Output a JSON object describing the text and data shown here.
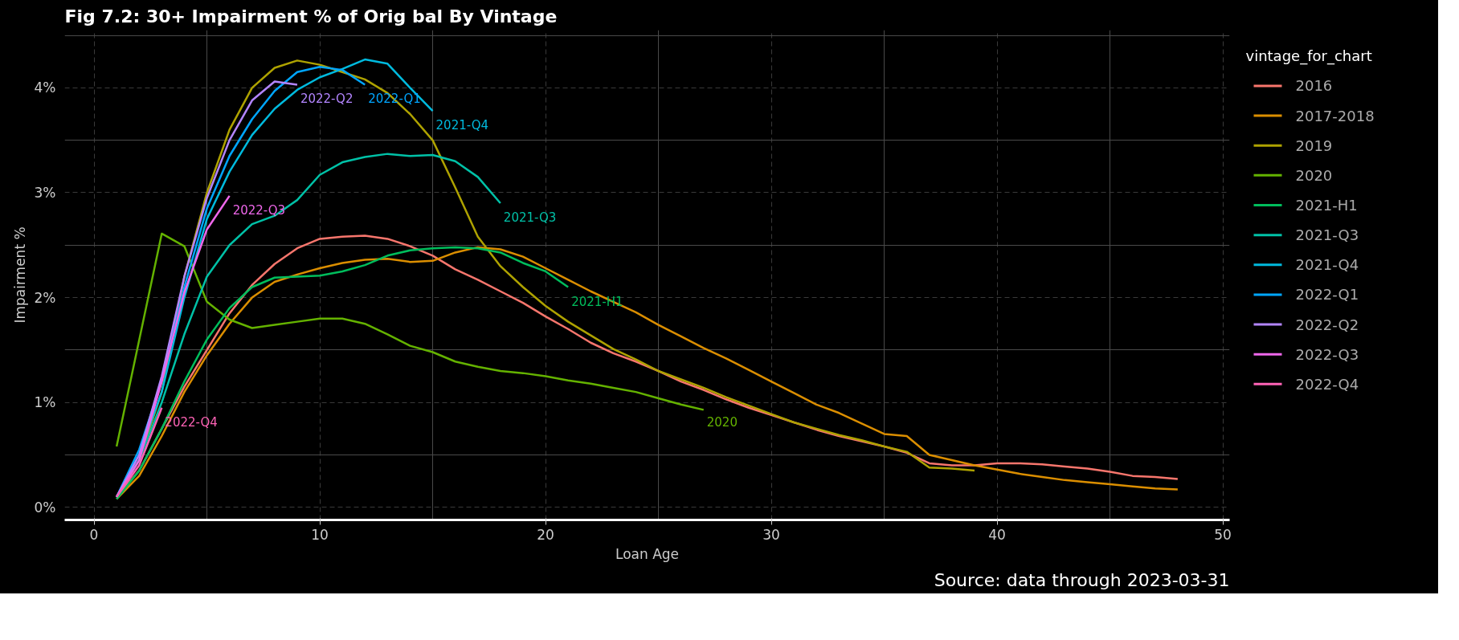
{
  "chart_data": {
    "type": "line",
    "title": "Fig 7.2: 30+ Impairment % of Orig bal By Vintage",
    "xlabel": "Loan Age",
    "ylabel": "Impairment %",
    "legend_title": "vintage_for_chart",
    "legend": "right",
    "grid": true,
    "line_style": "solid",
    "xlim": [
      -1.3,
      50.3
    ],
    "xticks": [
      0,
      10,
      20,
      30,
      40,
      50
    ],
    "ylim": [
      -0.12,
      4.55
    ],
    "yticks": [
      {
        "value": 0,
        "label": "0%"
      },
      {
        "value": 1,
        "label": "1%"
      },
      {
        "value": 2,
        "label": "2%"
      },
      {
        "value": 3,
        "label": "3%"
      },
      {
        "value": 4,
        "label": "4%"
      }
    ],
    "series": [
      {
        "name": "2016",
        "color": "#f8766d",
        "x": [
          1,
          2,
          3,
          4,
          5,
          6,
          7,
          8,
          9,
          10,
          11,
          12,
          13,
          14,
          15,
          16,
          17,
          18,
          19,
          20,
          21,
          22,
          23,
          24,
          25,
          26,
          27,
          28,
          29,
          30,
          31,
          32,
          33,
          34,
          35,
          36,
          37,
          38,
          39,
          40,
          41,
          42,
          43,
          44,
          45,
          46,
          47,
          48
        ],
        "values": [
          0.1,
          0.35,
          0.75,
          1.15,
          1.5,
          1.85,
          2.12,
          2.32,
          2.47,
          2.56,
          2.58,
          2.59,
          2.56,
          2.49,
          2.4,
          2.27,
          2.17,
          2.06,
          1.95,
          1.82,
          1.7,
          1.57,
          1.47,
          1.39,
          1.3,
          1.2,
          1.12,
          1.03,
          0.95,
          0.88,
          0.81,
          0.74,
          0.68,
          0.63,
          0.58,
          0.52,
          0.42,
          0.4,
          0.4,
          0.42,
          0.42,
          0.41,
          0.39,
          0.37,
          0.34,
          0.3,
          0.29,
          0.27
        ]
      },
      {
        "name": "2017-2018",
        "color": "#db8e00",
        "x": [
          1,
          2,
          3,
          4,
          5,
          6,
          7,
          8,
          9,
          10,
          11,
          12,
          13,
          14,
          15,
          16,
          17,
          18,
          19,
          20,
          21,
          22,
          23,
          24,
          25,
          26,
          27,
          28,
          29,
          30,
          31,
          32,
          33,
          34,
          35,
          36,
          37,
          38,
          39,
          40,
          41,
          42,
          43,
          44,
          45,
          46,
          47,
          48
        ],
        "values": [
          0.08,
          0.3,
          0.68,
          1.1,
          1.45,
          1.75,
          2.0,
          2.15,
          2.22,
          2.28,
          2.33,
          2.36,
          2.37,
          2.34,
          2.35,
          2.43,
          2.48,
          2.46,
          2.39,
          2.28,
          2.17,
          2.06,
          1.96,
          1.86,
          1.74,
          1.63,
          1.52,
          1.42,
          1.31,
          1.2,
          1.09,
          0.98,
          0.9,
          0.8,
          0.7,
          0.68,
          0.5,
          0.45,
          0.4,
          0.36,
          0.32,
          0.29,
          0.26,
          0.24,
          0.22,
          0.2,
          0.18,
          0.17
        ]
      },
      {
        "name": "2019",
        "color": "#aea200",
        "x": [
          1,
          2,
          3,
          4,
          5,
          6,
          7,
          8,
          9,
          10,
          11,
          12,
          13,
          14,
          15,
          16,
          17,
          18,
          19,
          20,
          21,
          22,
          23,
          24,
          25,
          26,
          27,
          28,
          29,
          30,
          31,
          32,
          33,
          34,
          35,
          36,
          37,
          38,
          39
        ],
        "values": [
          0.1,
          0.45,
          1.1,
          2.2,
          3.0,
          3.6,
          4.0,
          4.19,
          4.26,
          4.22,
          4.15,
          4.08,
          3.95,
          3.75,
          3.5,
          3.05,
          2.58,
          2.3,
          2.1,
          1.92,
          1.77,
          1.64,
          1.51,
          1.41,
          1.3,
          1.22,
          1.14,
          1.05,
          0.97,
          0.89,
          0.81,
          0.75,
          0.69,
          0.64,
          0.58,
          0.53,
          0.38,
          0.37,
          0.35
        ]
      },
      {
        "name": "2020",
        "color": "#64b200",
        "x": [
          1,
          3,
          4,
          5,
          6,
          7,
          8,
          9,
          10,
          11,
          12,
          13,
          14,
          15,
          16,
          17,
          18,
          19,
          20,
          21,
          22,
          23,
          24,
          25,
          26,
          27
        ],
        "values": [
          0.58,
          2.61,
          2.49,
          1.96,
          1.79,
          1.71,
          1.74,
          1.77,
          1.8,
          1.8,
          1.75,
          1.65,
          1.54,
          1.48,
          1.39,
          1.34,
          1.3,
          1.28,
          1.25,
          1.21,
          1.18,
          1.14,
          1.1,
          1.04,
          0.98,
          0.93
        ]
      },
      {
        "name": "2021-H1",
        "color": "#00bd5c",
        "x": [
          1,
          2,
          3,
          4,
          5,
          6,
          7,
          8,
          9,
          10,
          11,
          12,
          13,
          14,
          15,
          16,
          17,
          18,
          19,
          20,
          21
        ],
        "values": [
          0.08,
          0.35,
          0.75,
          1.2,
          1.6,
          1.9,
          2.1,
          2.19,
          2.2,
          2.21,
          2.25,
          2.31,
          2.4,
          2.45,
          2.47,
          2.48,
          2.47,
          2.43,
          2.33,
          2.25,
          2.1
        ]
      },
      {
        "name": "2021-Q3",
        "color": "#00c1a7",
        "x": [
          1,
          2,
          3,
          4,
          5,
          6,
          7,
          8,
          9,
          10,
          11,
          12,
          13,
          14,
          15,
          16,
          17,
          18
        ],
        "values": [
          0.1,
          0.45,
          1.0,
          1.65,
          2.2,
          2.5,
          2.7,
          2.78,
          2.93,
          3.17,
          3.29,
          3.34,
          3.37,
          3.35,
          3.36,
          3.3,
          3.15,
          2.9
        ]
      },
      {
        "name": "2021-Q4",
        "color": "#00bade",
        "x": [
          1,
          2,
          3,
          4,
          5,
          6,
          7,
          8,
          9,
          10,
          11,
          12,
          13,
          14,
          15
        ],
        "values": [
          0.1,
          0.5,
          1.1,
          2.0,
          2.75,
          3.2,
          3.55,
          3.8,
          3.98,
          4.1,
          4.18,
          4.27,
          4.23,
          4.0,
          3.78
        ]
      },
      {
        "name": "2022-Q1",
        "color": "#00a6ff",
        "x": [
          1,
          2,
          3,
          4,
          5,
          6,
          7,
          8,
          9,
          10,
          11,
          12
        ],
        "values": [
          0.1,
          0.55,
          1.2,
          2.1,
          2.85,
          3.35,
          3.7,
          3.97,
          4.15,
          4.2,
          4.17,
          4.03
        ]
      },
      {
        "name": "2022-Q2",
        "color": "#b385ff",
        "x": [
          1,
          2,
          3,
          4,
          5,
          6,
          7,
          8,
          9
        ],
        "values": [
          0.1,
          0.5,
          1.25,
          2.2,
          2.95,
          3.5,
          3.88,
          4.06,
          4.03
        ]
      },
      {
        "name": "2022-Q3",
        "color": "#ef67eb",
        "x": [
          1,
          2,
          3,
          4,
          5,
          6
        ],
        "values": [
          0.1,
          0.45,
          1.2,
          2.05,
          2.65,
          2.97
        ]
      },
      {
        "name": "2022-Q4",
        "color": "#ff63b6",
        "x": [
          1,
          2,
          3
        ],
        "values": [
          0.1,
          0.4,
          0.95
        ]
      }
    ],
    "annotations": [
      {
        "text": "2022-Q2",
        "x": 9,
        "y": 4.03
      },
      {
        "text": "2022-Q1",
        "x": 12,
        "y": 4.03
      },
      {
        "text": "2021-Q4",
        "x": 15,
        "y": 3.78
      },
      {
        "text": "2022-Q3",
        "x": 6,
        "y": 2.97
      },
      {
        "text": "2021-Q3",
        "x": 18,
        "y": 2.9
      },
      {
        "text": "2021-H1",
        "x": 21,
        "y": 2.1
      },
      {
        "text": "2020",
        "x": 27,
        "y": 0.93
      },
      {
        "text": "2022-Q4",
        "x": 3,
        "y": 0.95
      },
      "Source: data through 2023-03-31"
    ]
  }
}
